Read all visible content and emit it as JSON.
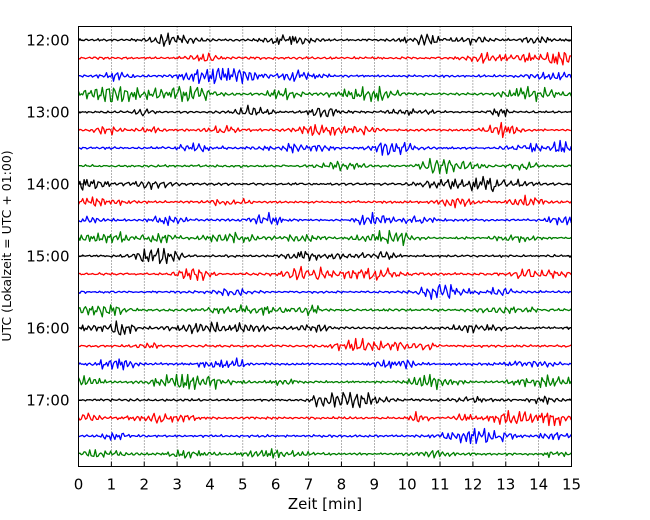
{
  "chart_data": {
    "type": "line",
    "title": "",
    "xlabel": "Zeit  [min]",
    "ylabel": "UTC (Lokalzeit = UTC + 01:00)",
    "xlim": [
      0,
      15
    ],
    "x_ticks": [
      "0",
      "1",
      "2",
      "3",
      "4",
      "5",
      "6",
      "7",
      "8",
      "9",
      "10",
      "11",
      "12",
      "13",
      "14",
      "15"
    ],
    "y_ticks": [
      "12:00",
      "13:00",
      "14:00",
      "15:00",
      "16:00",
      "17:00"
    ],
    "grid": "vertical dotted at each minute",
    "trace_interval_min": 15,
    "color_cycle": [
      "#000000",
      "#ff0000",
      "#0000ff",
      "#008000"
    ],
    "series": [
      {
        "start": "12:00"
      },
      {
        "start": "12:15"
      },
      {
        "start": "12:30"
      },
      {
        "start": "12:45"
      },
      {
        "start": "13:00"
      },
      {
        "start": "13:15"
      },
      {
        "start": "13:30"
      },
      {
        "start": "13:45"
      },
      {
        "start": "14:00"
      },
      {
        "start": "14:15"
      },
      {
        "start": "14:30"
      },
      {
        "start": "14:45"
      },
      {
        "start": "15:00"
      },
      {
        "start": "15:15"
      },
      {
        "start": "15:30"
      },
      {
        "start": "15:45"
      },
      {
        "start": "16:00"
      },
      {
        "start": "16:15"
      },
      {
        "start": "16:30"
      },
      {
        "start": "16:45"
      },
      {
        "start": "17:00"
      },
      {
        "start": "17:15"
      },
      {
        "start": "17:30"
      },
      {
        "start": "17:45"
      }
    ]
  }
}
